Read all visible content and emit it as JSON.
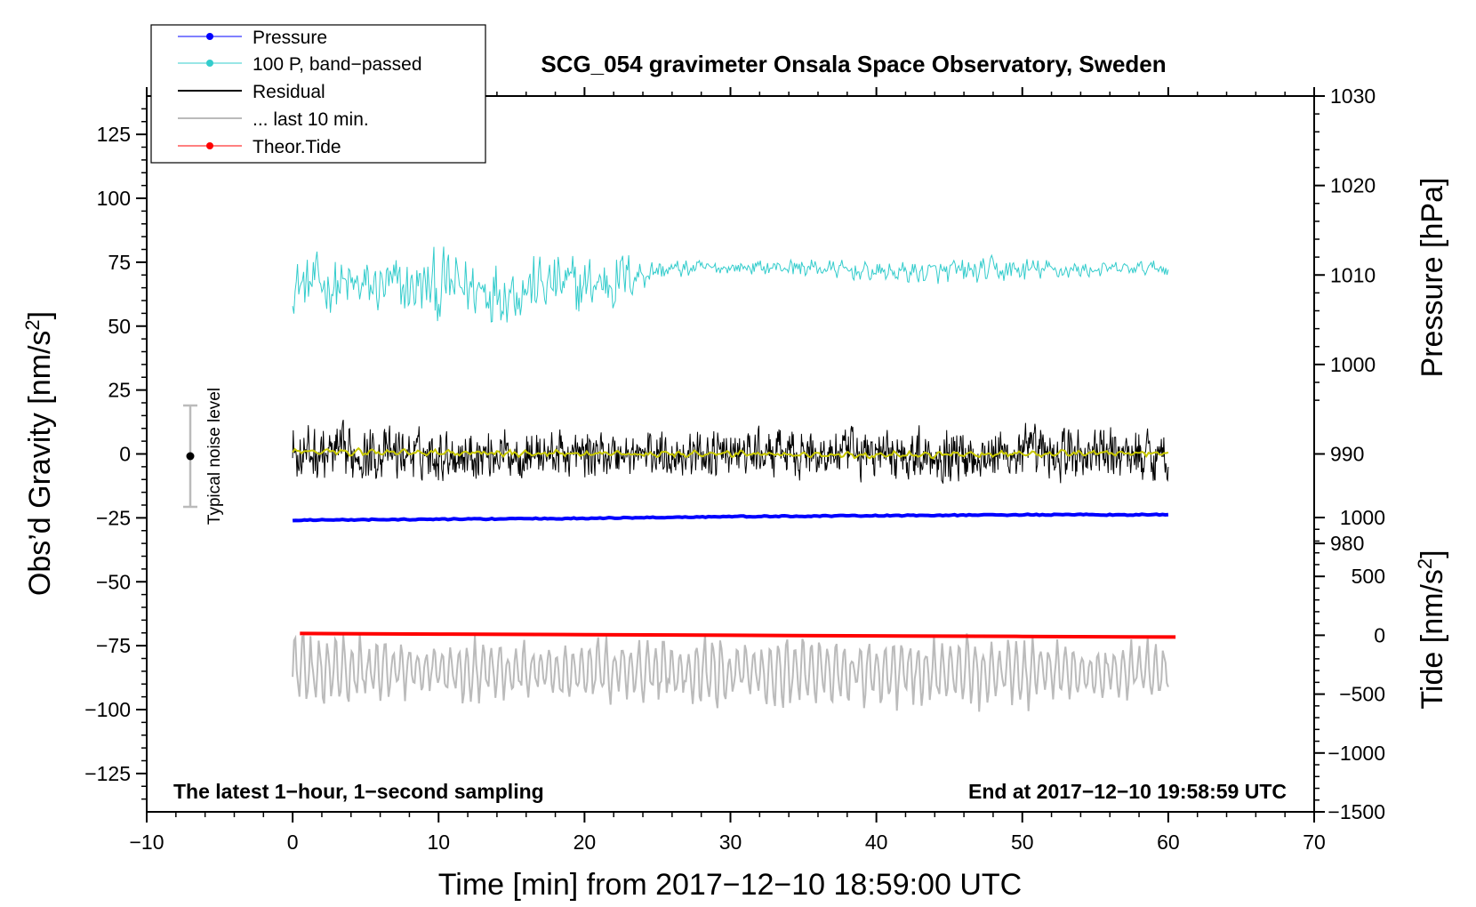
{
  "chart_data": {
    "type": "line",
    "title": "SCG_054 gravimeter Onsala Space Observatory, Sweden",
    "xlabel": "Time [min] from 2017−12−10 18:59:00 UTC",
    "ylabel_left": "Obs’d Gravity [nm/s²]",
    "ylabel_right_top": "Pressure [hPa]",
    "ylabel_right_bottom": "Tide [nm/s²]",
    "xlim": [
      -10,
      70
    ],
    "ylim_left": [
      -140,
      140
    ],
    "ylim_pressure": [
      950,
      1030
    ],
    "ylim_tide": [
      -1500,
      1000
    ],
    "x_ticks": [
      -10,
      0,
      10,
      20,
      30,
      40,
      50,
      60,
      70
    ],
    "x_tick_labels": [
      "−10",
      "0",
      "10",
      "20",
      "30",
      "40",
      "50",
      "60",
      "70"
    ],
    "left_ticks": [
      125,
      100,
      75,
      50,
      25,
      0,
      -25,
      -50,
      -75,
      -100,
      -125
    ],
    "left_tick_labels": [
      "125",
      "100",
      "75",
      "50",
      "25",
      "0",
      "−25",
      "−50",
      "−75",
      "−100",
      "−125"
    ],
    "pressure_ticks": [
      1030,
      1020,
      1010,
      1000,
      990,
      980
    ],
    "pressure_tick_labels": [
      "1030",
      "1020",
      "1010",
      "1000",
      "990",
      "980"
    ],
    "tide_ticks": [
      1000,
      500,
      0,
      -500,
      -1000,
      -1500
    ],
    "tide_tick_labels": [
      "1000",
      "500",
      "0",
      "−500",
      "−1000",
      "−1500"
    ],
    "annotation_left": "The latest 1−hour, 1−second sampling",
    "annotation_right": "End at 2017−12−10 19:58:59 UTC",
    "noise_label": "Typical noise level",
    "noise_level": {
      "x": -7,
      "center": 0,
      "low": -20,
      "high": 20
    },
    "legend": [
      {
        "label": "Pressure",
        "color": "#0000ff",
        "style": "line-dot"
      },
      {
        "label": "100 P, band−passed",
        "color": "#33cccc",
        "style": "line-dot"
      },
      {
        "label": "Residual",
        "color": "#000000",
        "style": "line"
      },
      {
        "label": "... last 10 min.",
        "color": "#bbbbbb",
        "style": "line"
      },
      {
        "label": "Theor.Tide",
        "color": "#ff0000",
        "style": "line-dot"
      }
    ],
    "series": [
      {
        "name": "Pressure",
        "axis": "pressure",
        "color": "#0000ff",
        "x": [
          0,
          10,
          20,
          30,
          40,
          50,
          60
        ],
        "y": [
          982.6,
          982.7,
          982.8,
          983.0,
          983.1,
          983.2,
          983.2
        ]
      },
      {
        "name": "100 P, band−passed",
        "axis": "left",
        "color": "#33cccc",
        "envelope_x": [
          0,
          5,
          10,
          15,
          20,
          22,
          25,
          30,
          35,
          40,
          45,
          50,
          55,
          60
        ],
        "center": [
          67,
          65,
          65,
          65,
          66,
          68,
          72,
          73,
          73,
          71,
          71,
          72,
          72,
          73
        ],
        "amplitude": [
          14,
          16,
          20,
          18,
          17,
          18,
          6,
          3,
          5,
          5,
          7,
          7,
          4,
          4
        ]
      },
      {
        "name": "Residual",
        "axis": "left",
        "color": "#000000",
        "envelope_x": [
          0,
          10,
          20,
          30,
          40,
          50,
          60
        ],
        "center": [
          0,
          0,
          0,
          0,
          0,
          0,
          0
        ],
        "amplitude": [
          15,
          13,
          12,
          12,
          13,
          15,
          14
        ]
      },
      {
        "name": "Residual smoothed",
        "axis": "left",
        "color": "#c8c800",
        "x": [
          0,
          10,
          20,
          30,
          40,
          50,
          60
        ],
        "y": [
          1,
          0.5,
          0,
          0,
          -0.5,
          0,
          0.5
        ]
      },
      {
        "name": "... last 10 min.",
        "axis": "left",
        "color": "#bbbbbb",
        "envelope_x": [
          0,
          10,
          20,
          30,
          40,
          50,
          60
        ],
        "center": [
          -85,
          -85,
          -85,
          -85,
          -85,
          -85,
          -85
        ],
        "amplitude": [
          18,
          12,
          15,
          14,
          15,
          14,
          12
        ]
      },
      {
        "name": "Theor.Tide",
        "axis": "tide",
        "color": "#ff0000",
        "x": [
          0.5,
          10,
          20,
          30,
          40,
          50,
          60.5
        ],
        "y": [
          15,
          10,
          5,
          0,
          -5,
          -10,
          -15
        ]
      }
    ]
  }
}
